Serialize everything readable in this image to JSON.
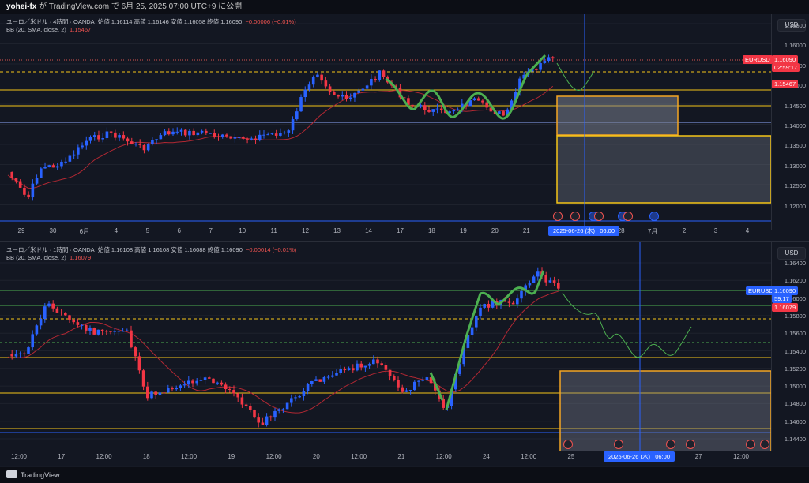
{
  "header": {
    "user": "yohei-fx",
    "rest": " が TradingView.com で 6月 25, 2025 07:00 UTC+9 に公開"
  },
  "pane1": {
    "title": "ユーロ／米ドル · 4時間 · OANDA",
    "ohlc": "始値 1.16114  高値 1.16146  安値 1.16058  終値 1.16090",
    "change": "−0.00006 (−0.01%)",
    "bb": "BB (20, SMA, close, 2)",
    "bb_val": "1.15467",
    "currency": "USD",
    "ylabels": [
      "1.16500",
      "1.16000",
      "1.15500",
      "1.15000",
      "1.14500",
      "1.14000",
      "1.13500",
      "1.13000",
      "1.12500",
      "1.12000"
    ],
    "symbol_tag": "EURUSD",
    "price_tag": "1.16090",
    "countdown_tag": "02:59:17",
    "bb_tag": "1.15467",
    "xlabels": [
      "29",
      "30",
      "6月",
      "4",
      "5",
      "6",
      "7",
      "10",
      "11",
      "12",
      "13",
      "14",
      "17",
      "18",
      "19",
      "20",
      "21",
      "24",
      "",
      "28",
      "7月",
      "2",
      "3",
      "4"
    ],
    "date_flag_date": "2025-06-26 (木)",
    "date_flag_time": "06:00"
  },
  "pane2": {
    "title": "ユーロ／米ドル · 1時間 · OANDA",
    "ohlc": "始値 1.16108  高値 1.16108  安値 1.16088  終値 1.16090",
    "change": "−0.00014 (−0.01%)",
    "bb": "BB (20, SMA, close, 2)",
    "bb_val": "1.16079",
    "currency": "USD",
    "ylabels": [
      "1.16400",
      "1.16200",
      "1.16000",
      "1.15800",
      "1.15600",
      "1.15400",
      "1.15200",
      "1.15000",
      "1.14800",
      "1.14600",
      "1.14400"
    ],
    "symbol_tag": "EURUSD",
    "price_tag": "1.16090",
    "countdown_tag": "59:17",
    "bb_tag": "1.16079",
    "xlabels": [
      "12:00",
      "17",
      "12:00",
      "18",
      "12:00",
      "19",
      "12:00",
      "20",
      "12:00",
      "21",
      "12:00",
      "24",
      "12:00",
      "25",
      "12:00",
      "",
      "27",
      "12:00"
    ],
    "date_flag_date": "2025-06-26 (木)",
    "date_flag_time": "06:00"
  },
  "footer": {
    "brand": "TradingView"
  },
  "colors": {
    "up": "#26a69a",
    "down": "#ef5350",
    "candle_up": "#2962ff",
    "candle_down": "#f23645",
    "yellow": "#f5c518",
    "green_path": "#4caf50",
    "bg": "#131722"
  }
}
